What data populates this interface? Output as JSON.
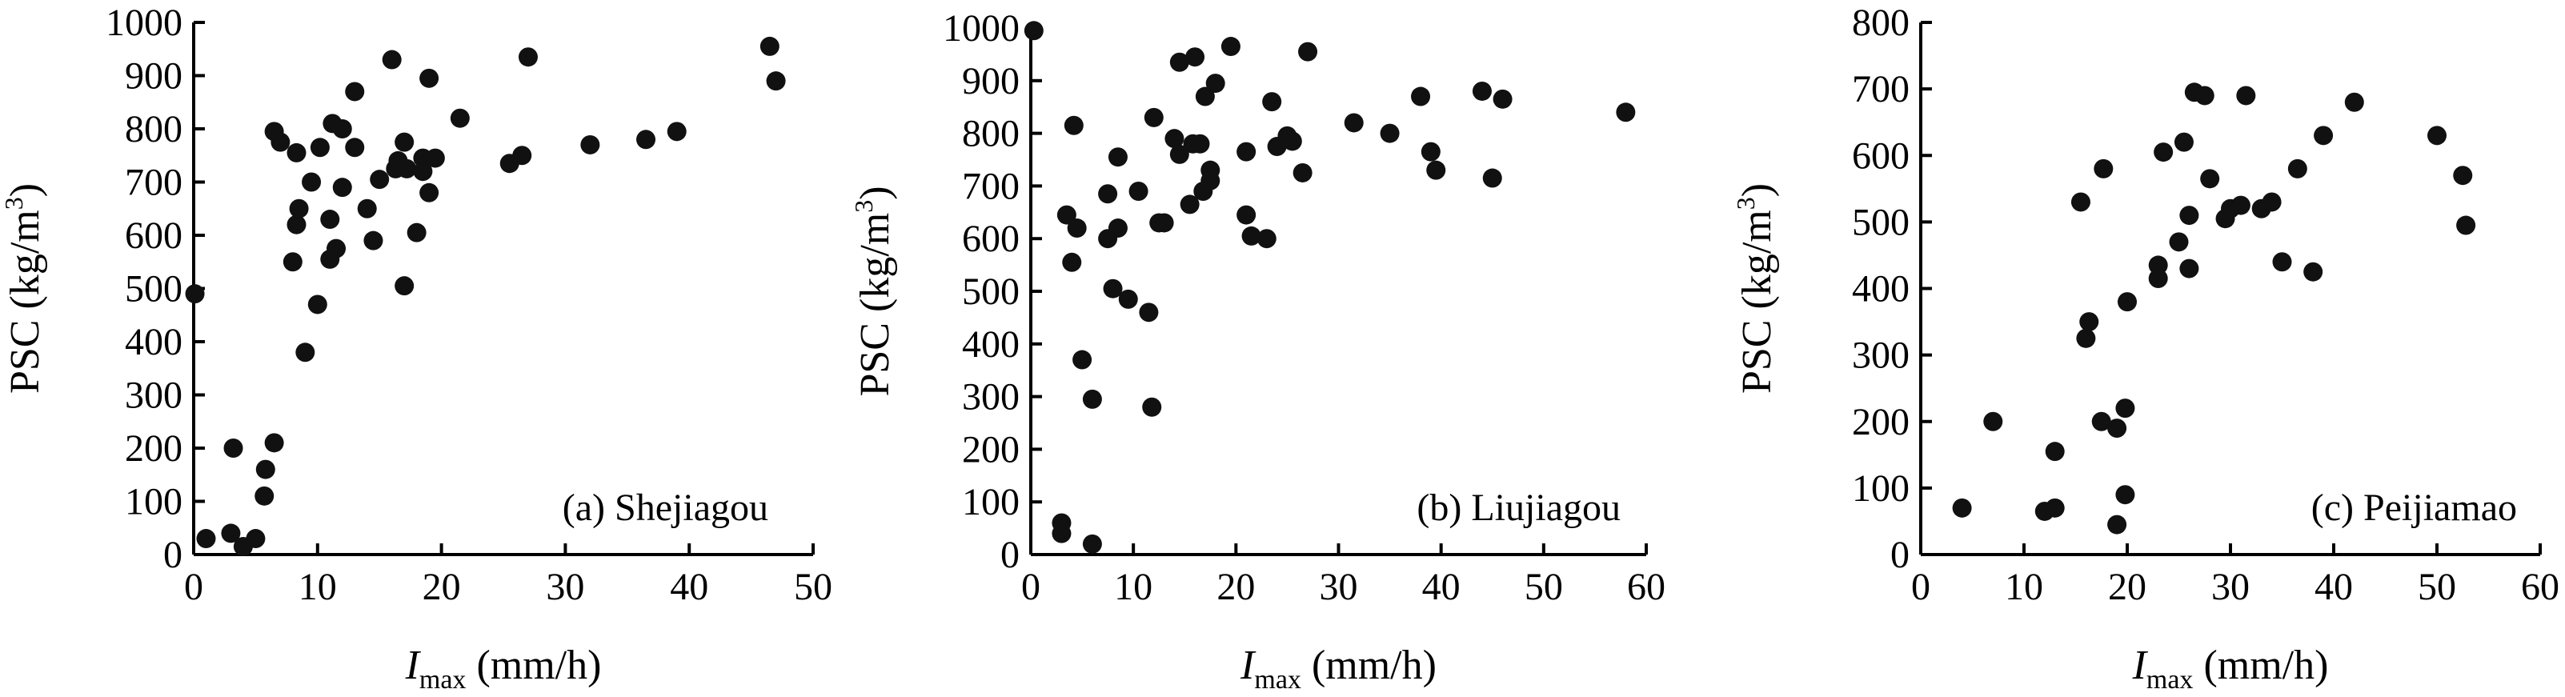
{
  "chart_data": [
    {
      "type": "scatter",
      "panel_label": "(a) Shejiagou",
      "ylabel_main": "PSC",
      "ylabel_unit": "(kg/m",
      "ylabel_sup": "3",
      "ylabel_close": ")",
      "xlabel_var": "I",
      "xlabel_sub": "max",
      "xlabel_unit": " (mm/h)",
      "xlim": [
        0,
        50
      ],
      "ylim": [
        0,
        1000
      ],
      "xticks": [
        "0",
        "10",
        "20",
        "30",
        "40",
        "50"
      ],
      "yticks": [
        "0",
        "100",
        "200",
        "300",
        "400",
        "500",
        "600",
        "700",
        "800",
        "900",
        "1000"
      ],
      "points": [
        [
          0.1,
          490
        ],
        [
          1,
          30
        ],
        [
          3,
          40
        ],
        [
          3.2,
          200
        ],
        [
          4,
          15
        ],
        [
          5,
          30
        ],
        [
          5.7,
          110
        ],
        [
          5.8,
          160
        ],
        [
          6.5,
          210
        ],
        [
          6.5,
          795
        ],
        [
          7,
          775
        ],
        [
          8,
          550
        ],
        [
          8.3,
          620
        ],
        [
          8.5,
          650
        ],
        [
          8.3,
          755
        ],
        [
          9,
          380
        ],
        [
          9.5,
          700
        ],
        [
          10,
          470
        ],
        [
          10.2,
          765
        ],
        [
          11,
          630
        ],
        [
          11,
          555
        ],
        [
          11.2,
          810
        ],
        [
          11.5,
          575
        ],
        [
          12,
          800
        ],
        [
          12,
          690
        ],
        [
          13,
          870
        ],
        [
          13,
          765
        ],
        [
          14,
          650
        ],
        [
          14.5,
          590
        ],
        [
          15,
          705
        ],
        [
          16,
          930
        ],
        [
          16.3,
          725
        ],
        [
          16.5,
          740
        ],
        [
          17,
          505
        ],
        [
          17,
          775
        ],
        [
          17.2,
          725
        ],
        [
          18,
          605
        ],
        [
          18.5,
          745
        ],
        [
          18.5,
          720
        ],
        [
          19,
          895
        ],
        [
          19,
          680
        ],
        [
          19.5,
          745
        ],
        [
          21.5,
          820
        ],
        [
          25.5,
          735
        ],
        [
          26.5,
          750
        ],
        [
          27,
          935
        ],
        [
          32,
          770
        ],
        [
          36.5,
          780
        ],
        [
          39,
          795
        ],
        [
          46.5,
          955
        ],
        [
          47,
          890
        ]
      ]
    },
    {
      "type": "scatter",
      "panel_label": "(b) Liujiagou",
      "ylabel_main": "PSC",
      "ylabel_unit": "(kg/m",
      "ylabel_sup": "3",
      "ylabel_close": ")",
      "xlabel_var": "I",
      "xlabel_sub": "max",
      "xlabel_unit": " (mm/h)",
      "xlim": [
        0,
        60
      ],
      "ylim": [
        0,
        1000
      ],
      "xticks": [
        "0",
        "10",
        "20",
        "30",
        "40",
        "50",
        "60"
      ],
      "yticks": [
        "0",
        "100",
        "200",
        "300",
        "400",
        "500",
        "600",
        "700",
        "800",
        "900",
        "1000"
      ],
      "points": [
        [
          0.3,
          995
        ],
        [
          3,
          60
        ],
        [
          3,
          40
        ],
        [
          3.5,
          645
        ],
        [
          4,
          555
        ],
        [
          4.2,
          815
        ],
        [
          4.5,
          620
        ],
        [
          5,
          370
        ],
        [
          6,
          295
        ],
        [
          6,
          20
        ],
        [
          7.5,
          600
        ],
        [
          7.5,
          685
        ],
        [
          8,
          505
        ],
        [
          8.5,
          620
        ],
        [
          8.5,
          755
        ],
        [
          9.5,
          485
        ],
        [
          10.5,
          690
        ],
        [
          11.5,
          460
        ],
        [
          11.8,
          280
        ],
        [
          12,
          830
        ],
        [
          12.5,
          630
        ],
        [
          13,
          630
        ],
        [
          14,
          790
        ],
        [
          14.5,
          935
        ],
        [
          14.5,
          760
        ],
        [
          15.5,
          665
        ],
        [
          15.8,
          780
        ],
        [
          16,
          945
        ],
        [
          16.5,
          780
        ],
        [
          16.8,
          690
        ],
        [
          17,
          870
        ],
        [
          17.5,
          730
        ],
        [
          17.5,
          710
        ],
        [
          18,
          895
        ],
        [
          19.5,
          965
        ],
        [
          21,
          765
        ],
        [
          21,
          645
        ],
        [
          21.5,
          605
        ],
        [
          23,
          600
        ],
        [
          23.5,
          860
        ],
        [
          24,
          775
        ],
        [
          25,
          795
        ],
        [
          25.5,
          785
        ],
        [
          26.5,
          725
        ],
        [
          27,
          955
        ],
        [
          31.5,
          820
        ],
        [
          35,
          800
        ],
        [
          38,
          870
        ],
        [
          39,
          765
        ],
        [
          39.5,
          730
        ],
        [
          44,
          880
        ],
        [
          45,
          715
        ],
        [
          46,
          865
        ],
        [
          58,
          840
        ]
      ]
    },
    {
      "type": "scatter",
      "panel_label": "(c) Peijiamao",
      "ylabel_main": "PSC",
      "ylabel_unit": "(kg/m",
      "ylabel_sup": "3",
      "ylabel_close": ")",
      "xlabel_var": "I",
      "xlabel_sub": "max",
      "xlabel_unit": " (mm/h)",
      "xlim": [
        0,
        60
      ],
      "ylim": [
        0,
        800
      ],
      "xticks": [
        "0",
        "10",
        "20",
        "30",
        "40",
        "50",
        "60"
      ],
      "yticks": [
        "0",
        "100",
        "200",
        "300",
        "400",
        "500",
        "600",
        "700",
        "800"
      ],
      "points": [
        [
          4,
          70
        ],
        [
          7,
          200
        ],
        [
          12,
          65
        ],
        [
          13,
          155
        ],
        [
          13,
          70
        ],
        [
          15.5,
          530
        ],
        [
          16,
          325
        ],
        [
          16.3,
          350
        ],
        [
          17.5,
          200
        ],
        [
          17.7,
          580
        ],
        [
          19,
          45
        ],
        [
          19,
          190
        ],
        [
          19.8,
          220
        ],
        [
          19.8,
          90
        ],
        [
          20,
          380
        ],
        [
          23,
          415
        ],
        [
          23,
          435
        ],
        [
          23.5,
          605
        ],
        [
          25,
          470
        ],
        [
          25.5,
          620
        ],
        [
          26,
          510
        ],
        [
          26,
          430
        ],
        [
          26.5,
          695
        ],
        [
          27.5,
          690
        ],
        [
          28,
          565
        ],
        [
          29.5,
          505
        ],
        [
          30,
          520
        ],
        [
          31,
          525
        ],
        [
          31.5,
          690
        ],
        [
          33,
          520
        ],
        [
          34,
          530
        ],
        [
          35,
          440
        ],
        [
          36.5,
          580
        ],
        [
          38,
          425
        ],
        [
          39,
          630
        ],
        [
          42,
          680
        ],
        [
          50,
          630
        ],
        [
          52.5,
          570
        ],
        [
          52.8,
          495
        ]
      ]
    }
  ]
}
